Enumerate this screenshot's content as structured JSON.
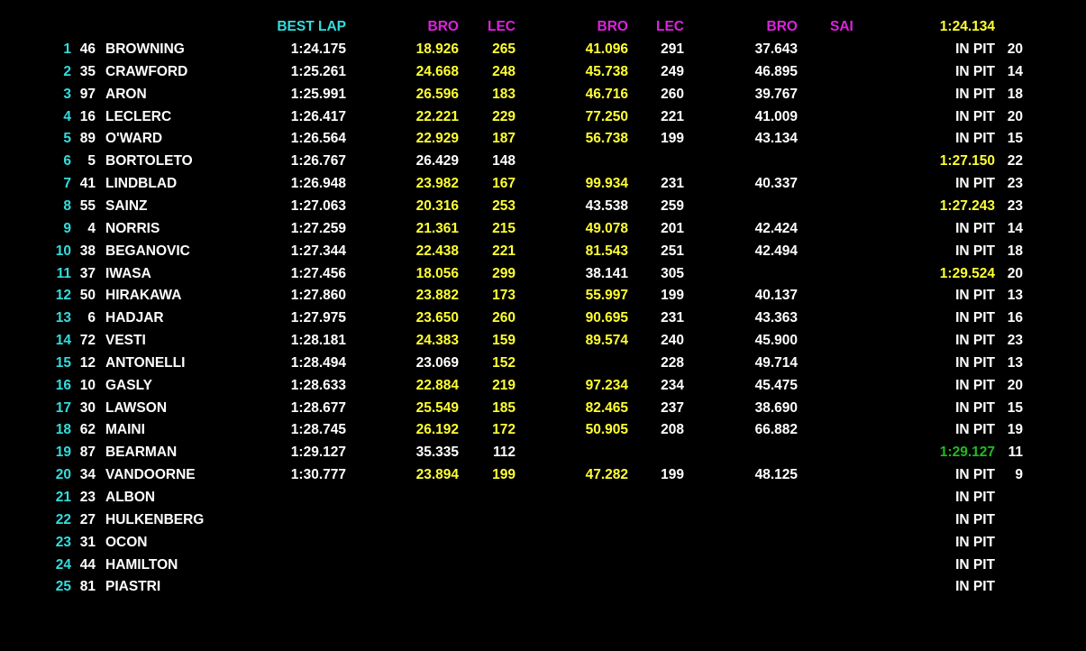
{
  "colors": {
    "cyan": "#33dddd",
    "magenta": "#dd22dd",
    "yellow": "#ffff33",
    "white": "#ffffff",
    "green": "#22bb22"
  },
  "header": {
    "best_lap": "BEST LAP",
    "col1": "BRO",
    "col2": "LEC",
    "col3": "BRO",
    "col4": "LEC",
    "col5": "BRO",
    "col6": "SAI",
    "fastest": "1:24.134"
  },
  "rows": [
    {
      "pos": "1",
      "num": "46",
      "name": "BROWNING",
      "best": "1:24.175",
      "s1": "18.926",
      "s1c": "yellow",
      "s2": "265",
      "s2c": "yellow",
      "s3": "41.096",
      "s3c": "yellow",
      "s4": "291",
      "s4c": "white",
      "s5": "37.643",
      "s5c": "white",
      "status": "IN PIT",
      "statusc": "white",
      "laps": "20"
    },
    {
      "pos": "2",
      "num": "35",
      "name": "CRAWFORD",
      "best": "1:25.261",
      "s1": "24.668",
      "s1c": "yellow",
      "s2": "248",
      "s2c": "yellow",
      "s3": "45.738",
      "s3c": "yellow",
      "s4": "249",
      "s4c": "white",
      "s5": "46.895",
      "s5c": "white",
      "status": "IN PIT",
      "statusc": "white",
      "laps": "14"
    },
    {
      "pos": "3",
      "num": "97",
      "name": "ARON",
      "best": "1:25.991",
      "s1": "26.596",
      "s1c": "yellow",
      "s2": "183",
      "s2c": "yellow",
      "s3": "46.716",
      "s3c": "yellow",
      "s4": "260",
      "s4c": "white",
      "s5": "39.767",
      "s5c": "white",
      "status": "IN PIT",
      "statusc": "white",
      "laps": "18"
    },
    {
      "pos": "4",
      "num": "16",
      "name": "LECLERC",
      "best": "1:26.417",
      "s1": "22.221",
      "s1c": "yellow",
      "s2": "229",
      "s2c": "yellow",
      "s3": "77.250",
      "s3c": "yellow",
      "s4": "221",
      "s4c": "white",
      "s5": "41.009",
      "s5c": "white",
      "status": "IN PIT",
      "statusc": "white",
      "laps": "20"
    },
    {
      "pos": "5",
      "num": "89",
      "name": "O'WARD",
      "best": "1:26.564",
      "s1": "22.929",
      "s1c": "yellow",
      "s2": "187",
      "s2c": "yellow",
      "s3": "56.738",
      "s3c": "yellow",
      "s4": "199",
      "s4c": "white",
      "s5": "43.134",
      "s5c": "white",
      "status": "IN PIT",
      "statusc": "white",
      "laps": "15"
    },
    {
      "pos": "6",
      "num": "5",
      "name": "BORTOLETO",
      "best": "1:26.767",
      "s1": "26.429",
      "s1c": "white",
      "s2": "148",
      "s2c": "white",
      "s3": "",
      "s3c": "white",
      "s4": "",
      "s4c": "white",
      "s5": "",
      "s5c": "white",
      "status": "1:27.150",
      "statusc": "yellow",
      "laps": "22"
    },
    {
      "pos": "7",
      "num": "41",
      "name": "LINDBLAD",
      "best": "1:26.948",
      "s1": "23.982",
      "s1c": "yellow",
      "s2": "167",
      "s2c": "yellow",
      "s3": "99.934",
      "s3c": "yellow",
      "s4": "231",
      "s4c": "white",
      "s5": "40.337",
      "s5c": "white",
      "status": "IN PIT",
      "statusc": "white",
      "laps": "23"
    },
    {
      "pos": "8",
      "num": "55",
      "name": "SAINZ",
      "best": "1:27.063",
      "s1": "20.316",
      "s1c": "yellow",
      "s2": "253",
      "s2c": "yellow",
      "s3": "43.538",
      "s3c": "white",
      "s4": "259",
      "s4c": "white",
      "s5": "",
      "s5c": "white",
      "status": "1:27.243",
      "statusc": "yellow",
      "laps": "23"
    },
    {
      "pos": "9",
      "num": "4",
      "name": "NORRIS",
      "best": "1:27.259",
      "s1": "21.361",
      "s1c": "yellow",
      "s2": "215",
      "s2c": "yellow",
      "s3": "49.078",
      "s3c": "yellow",
      "s4": "201",
      "s4c": "white",
      "s5": "42.424",
      "s5c": "white",
      "status": "IN PIT",
      "statusc": "white",
      "laps": "14"
    },
    {
      "pos": "10",
      "num": "38",
      "name": "BEGANOVIC",
      "best": "1:27.344",
      "s1": "22.438",
      "s1c": "yellow",
      "s2": "221",
      "s2c": "yellow",
      "s3": "81.543",
      "s3c": "yellow",
      "s4": "251",
      "s4c": "white",
      "s5": "42.494",
      "s5c": "white",
      "status": "IN PIT",
      "statusc": "white",
      "laps": "18"
    },
    {
      "pos": "11",
      "num": "37",
      "name": "IWASA",
      "best": "1:27.456",
      "s1": "18.056",
      "s1c": "yellow",
      "s2": "299",
      "s2c": "yellow",
      "s3": "38.141",
      "s3c": "white",
      "s4": "305",
      "s4c": "white",
      "s5": "",
      "s5c": "white",
      "status": "1:29.524",
      "statusc": "yellow",
      "laps": "20"
    },
    {
      "pos": "12",
      "num": "50",
      "name": "HIRAKAWA",
      "best": "1:27.860",
      "s1": "23.882",
      "s1c": "yellow",
      "s2": "173",
      "s2c": "yellow",
      "s3": "55.997",
      "s3c": "yellow",
      "s4": "199",
      "s4c": "white",
      "s5": "40.137",
      "s5c": "white",
      "status": "IN PIT",
      "statusc": "white",
      "laps": "13"
    },
    {
      "pos": "13",
      "num": "6",
      "name": "HADJAR",
      "best": "1:27.975",
      "s1": "23.650",
      "s1c": "yellow",
      "s2": "260",
      "s2c": "yellow",
      "s3": "90.695",
      "s3c": "yellow",
      "s4": "231",
      "s4c": "white",
      "s5": "43.363",
      "s5c": "white",
      "status": "IN PIT",
      "statusc": "white",
      "laps": "16"
    },
    {
      "pos": "14",
      "num": "72",
      "name": "VESTI",
      "best": "1:28.181",
      "s1": "24.383",
      "s1c": "yellow",
      "s2": "159",
      "s2c": "yellow",
      "s3": "89.574",
      "s3c": "yellow",
      "s4": "240",
      "s4c": "white",
      "s5": "45.900",
      "s5c": "white",
      "status": "IN PIT",
      "statusc": "white",
      "laps": "23"
    },
    {
      "pos": "15",
      "num": "12",
      "name": "ANTONELLI",
      "best": "1:28.494",
      "s1": "23.069",
      "s1c": "white",
      "s2": "152",
      "s2c": "yellow",
      "s3": "",
      "s3c": "white",
      "s4": "228",
      "s4c": "white",
      "s5": "49.714",
      "s5c": "white",
      "status": "IN PIT",
      "statusc": "white",
      "laps": "13"
    },
    {
      "pos": "16",
      "num": "10",
      "name": "GASLY",
      "best": "1:28.633",
      "s1": "22.884",
      "s1c": "yellow",
      "s2": "219",
      "s2c": "yellow",
      "s3": "97.234",
      "s3c": "yellow",
      "s4": "234",
      "s4c": "white",
      "s5": "45.475",
      "s5c": "white",
      "status": "IN PIT",
      "statusc": "white",
      "laps": "20"
    },
    {
      "pos": "17",
      "num": "30",
      "name": "LAWSON",
      "best": "1:28.677",
      "s1": "25.549",
      "s1c": "yellow",
      "s2": "185",
      "s2c": "yellow",
      "s3": "82.465",
      "s3c": "yellow",
      "s4": "237",
      "s4c": "white",
      "s5": "38.690",
      "s5c": "white",
      "status": "IN PIT",
      "statusc": "white",
      "laps": "15"
    },
    {
      "pos": "18",
      "num": "62",
      "name": "MAINI",
      "best": "1:28.745",
      "s1": "26.192",
      "s1c": "yellow",
      "s2": "172",
      "s2c": "yellow",
      "s3": "50.905",
      "s3c": "yellow",
      "s4": "208",
      "s4c": "white",
      "s5": "66.882",
      "s5c": "white",
      "status": "IN PIT",
      "statusc": "white",
      "laps": "19"
    },
    {
      "pos": "19",
      "num": "87",
      "name": "BEARMAN",
      "best": "1:29.127",
      "s1": "35.335",
      "s1c": "white",
      "s2": "112",
      "s2c": "white",
      "s3": "",
      "s3c": "white",
      "s4": "",
      "s4c": "white",
      "s5": "",
      "s5c": "white",
      "status": "1:29.127",
      "statusc": "green",
      "laps": "11"
    },
    {
      "pos": "20",
      "num": "34",
      "name": "VANDOORNE",
      "best": "1:30.777",
      "s1": "23.894",
      "s1c": "yellow",
      "s2": "199",
      "s2c": "yellow",
      "s3": "47.282",
      "s3c": "yellow",
      "s4": "199",
      "s4c": "white",
      "s5": "48.125",
      "s5c": "white",
      "status": "IN PIT",
      "statusc": "white",
      "laps": "9"
    },
    {
      "pos": "21",
      "num": "23",
      "name": "ALBON",
      "best": "",
      "s1": "",
      "s1c": "white",
      "s2": "",
      "s2c": "white",
      "s3": "",
      "s3c": "white",
      "s4": "",
      "s4c": "white",
      "s5": "",
      "s5c": "white",
      "status": "IN PIT",
      "statusc": "white",
      "laps": ""
    },
    {
      "pos": "22",
      "num": "27",
      "name": "HULKENBERG",
      "best": "",
      "s1": "",
      "s1c": "white",
      "s2": "",
      "s2c": "white",
      "s3": "",
      "s3c": "white",
      "s4": "",
      "s4c": "white",
      "s5": "",
      "s5c": "white",
      "status": "IN PIT",
      "statusc": "white",
      "laps": ""
    },
    {
      "pos": "23",
      "num": "31",
      "name": "OCON",
      "best": "",
      "s1": "",
      "s1c": "white",
      "s2": "",
      "s2c": "white",
      "s3": "",
      "s3c": "white",
      "s4": "",
      "s4c": "white",
      "s5": "",
      "s5c": "white",
      "status": "IN PIT",
      "statusc": "white",
      "laps": ""
    },
    {
      "pos": "24",
      "num": "44",
      "name": "HAMILTON",
      "best": "",
      "s1": "",
      "s1c": "white",
      "s2": "",
      "s2c": "white",
      "s3": "",
      "s3c": "white",
      "s4": "",
      "s4c": "white",
      "s5": "",
      "s5c": "white",
      "status": "IN PIT",
      "statusc": "white",
      "laps": ""
    },
    {
      "pos": "25",
      "num": "81",
      "name": "PIASTRI",
      "best": "",
      "s1": "",
      "s1c": "white",
      "s2": "",
      "s2c": "white",
      "s3": "",
      "s3c": "white",
      "s4": "",
      "s4c": "white",
      "s5": "",
      "s5c": "white",
      "status": "IN PIT",
      "statusc": "white",
      "laps": ""
    }
  ]
}
